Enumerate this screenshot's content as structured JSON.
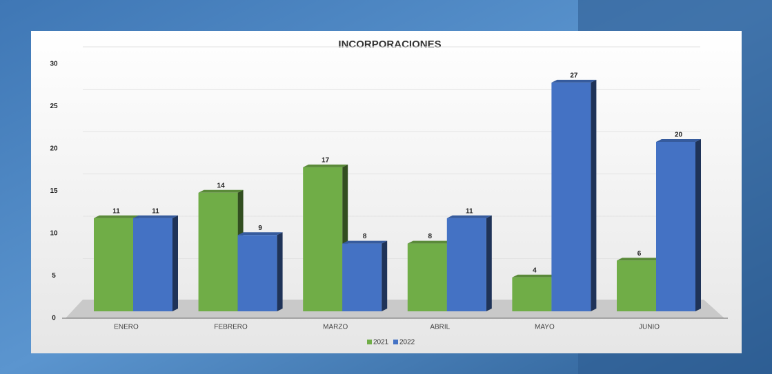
{
  "chart_data": {
    "type": "bar3d",
    "title": "INCORPORACIONES",
    "categories": [
      "ENERO",
      "FEBRERO",
      "MARZO",
      "ABRIL",
      "MAYO",
      "JUNIO"
    ],
    "series": [
      {
        "name": "2021",
        "color": "#70ad47",
        "values": [
          11,
          14,
          17,
          8,
          4,
          6
        ]
      },
      {
        "name": "2022",
        "color": "#4472c4",
        "values": [
          11,
          9,
          8,
          11,
          27,
          20
        ]
      }
    ],
    "ylim": [
      0,
      30
    ],
    "yticks": [
      0,
      5,
      10,
      15,
      20,
      25,
      30
    ],
    "grid": true,
    "legend": "bottom"
  }
}
